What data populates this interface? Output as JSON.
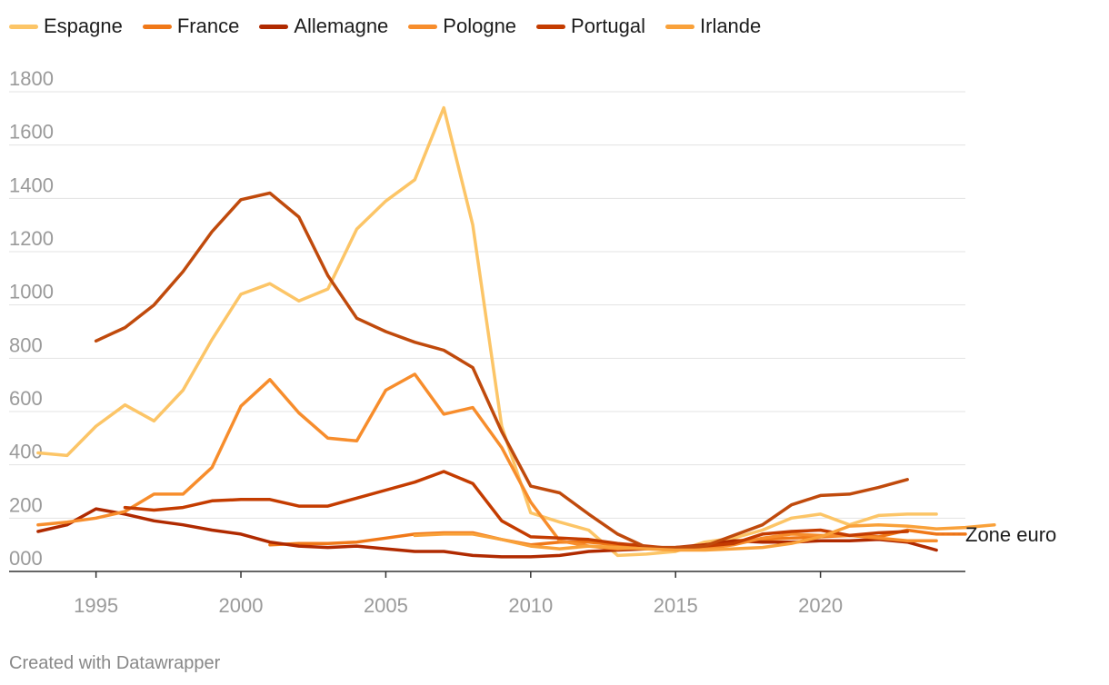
{
  "chart_data": {
    "type": "line",
    "title": "",
    "xlabel": "",
    "ylabel": "",
    "xlim": [
      1992,
      2025
    ],
    "ylim": [
      0,
      1800
    ],
    "x_ticks": [
      "1995",
      "2000",
      "2005",
      "2010",
      "2015",
      "2020"
    ],
    "y_ticks": [
      "1800",
      "1600",
      "1400",
      "1200",
      "1000",
      "800",
      "600",
      "400",
      "200",
      "000"
    ],
    "grid": true,
    "legend": "top",
    "series": [
      {
        "name": "Espagne",
        "color": "#FCC567",
        "start_year": 1993,
        "values": [
          445,
          435,
          545,
          625,
          565,
          680,
          870,
          1040,
          1080,
          1015,
          1060,
          1285,
          1390,
          1470,
          1740,
          1300,
          545,
          220,
          185,
          155,
          60,
          65,
          75,
          110,
          125,
          155,
          200,
          215,
          175,
          210,
          215,
          215
        ]
      },
      {
        "name": "France",
        "color": "#F07818",
        "start_year": 2001,
        "values": [
          100,
          105,
          105,
          110,
          125,
          140,
          145,
          145,
          120,
          100,
          110,
          110,
          100,
          90,
          85,
          100,
          115,
          120,
          125,
          130,
          135,
          130,
          155,
          140,
          140
        ]
      },
      {
        "name": "Allemagne",
        "color": "#B02A00",
        "start_year": 1993,
        "values": [
          150,
          175,
          235,
          215,
          190,
          175,
          155,
          140,
          110,
          95,
          90,
          95,
          85,
          75,
          75,
          60,
          55,
          55,
          60,
          75,
          80,
          85,
          90,
          100,
          115,
          110,
          110,
          115,
          115,
          120,
          110,
          80
        ]
      },
      {
        "name": "Pologne",
        "color": "#F78D2C",
        "start_year": 1993,
        "values": [
          175,
          185,
          200,
          225,
          290,
          290,
          390,
          620,
          720,
          595,
          500,
          490,
          680,
          740,
          590,
          615,
          465,
          260,
          115,
          95,
          85,
          90,
          80,
          85,
          100,
          125,
          140,
          135,
          135,
          125,
          115,
          115
        ]
      },
      {
        "name": "Portugal",
        "color": "#C43C00",
        "start_year": 1996,
        "values": [
          240,
          230,
          240,
          265,
          270,
          270,
          245,
          245,
          275,
          305,
          335,
          375,
          330,
          190,
          130,
          125,
          120,
          105,
          95,
          85,
          95,
          105,
          140,
          150,
          155,
          135,
          145,
          150
        ]
      },
      {
        "name": "Portugal",
        "color": "#C04A0C",
        "start_year": 1995,
        "values": [
          865,
          915,
          1000,
          1125,
          1275,
          1395,
          1420,
          1330,
          1110,
          950,
          900,
          860,
          830,
          765,
          525,
          320,
          295,
          215,
          140,
          90,
          90,
          95,
          135,
          175,
          250,
          285,
          290,
          315,
          345
        ]
      },
      {
        "name": "Irlande",
        "color": "#F9A13A",
        "start_year": 2006,
        "values": [
          135,
          140,
          140,
          120,
          95,
          85,
          95,
          90,
          85,
          80,
          80,
          85,
          90,
          105,
          130,
          170,
          175,
          170,
          160,
          165,
          175
        ]
      }
    ],
    "annotations": [
      {
        "label": "Zone euro",
        "value": 140,
        "color": "#E4701E"
      }
    ]
  },
  "footer": {
    "credit": "Created with Datawrapper"
  }
}
